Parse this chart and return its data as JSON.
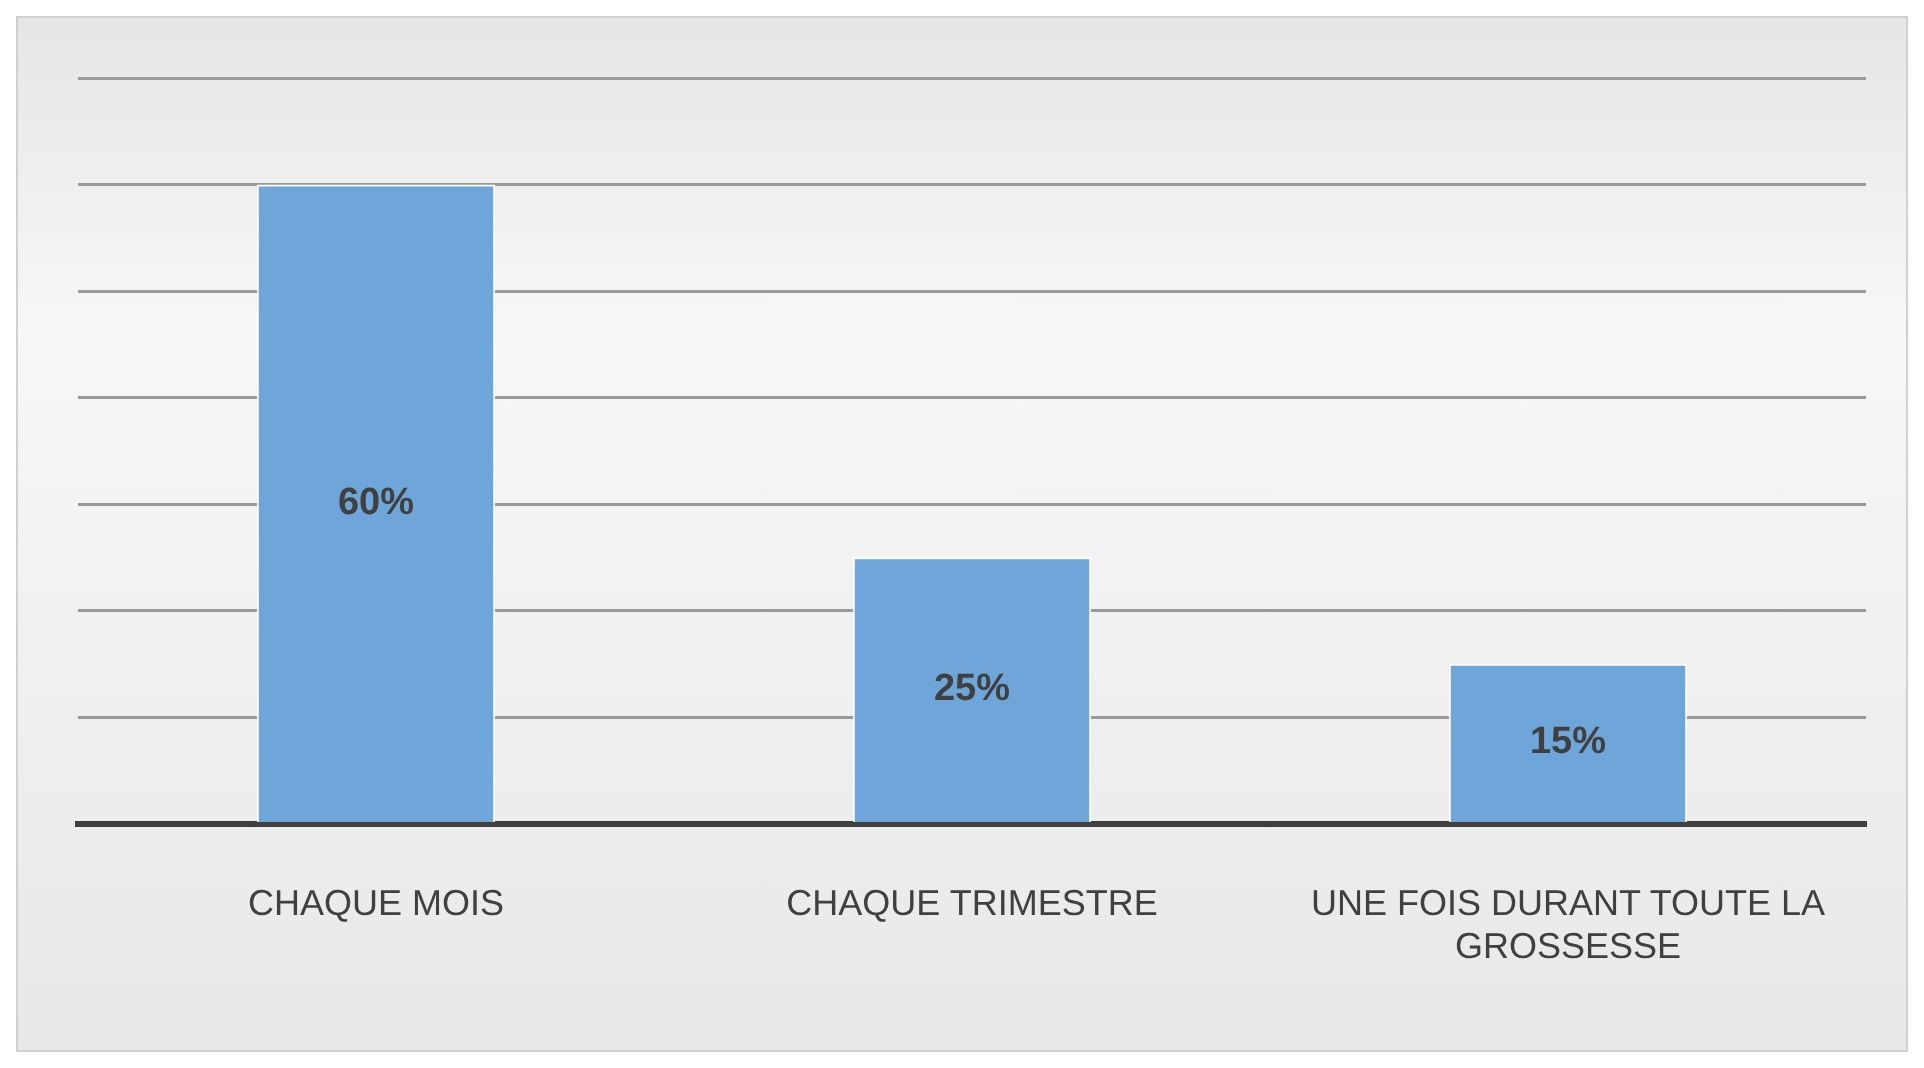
{
  "chart_data": {
    "type": "bar",
    "categories": [
      "CHAQUE MOIS",
      "CHAQUE TRIMESTRE",
      "UNE FOIS DURANT TOUTE LA GROSSESSE"
    ],
    "values": [
      60,
      25,
      15
    ],
    "value_labels": [
      "60%",
      "25%",
      "15%"
    ],
    "color": "#6fa6da",
    "ylim": [
      0,
      70
    ],
    "yticks": [
      {
        "value": 0,
        "label": null
      },
      {
        "value": 10,
        "label": null
      },
      {
        "value": 20,
        "label": null
      },
      {
        "value": 30,
        "label": null
      },
      {
        "value": 40,
        "label": null
      },
      {
        "value": 50,
        "label": null
      },
      {
        "value": 60,
        "label": null
      },
      {
        "value": 70,
        "label": null
      }
    ],
    "grid": "y",
    "tick_labels": "x",
    "legend": false
  }
}
